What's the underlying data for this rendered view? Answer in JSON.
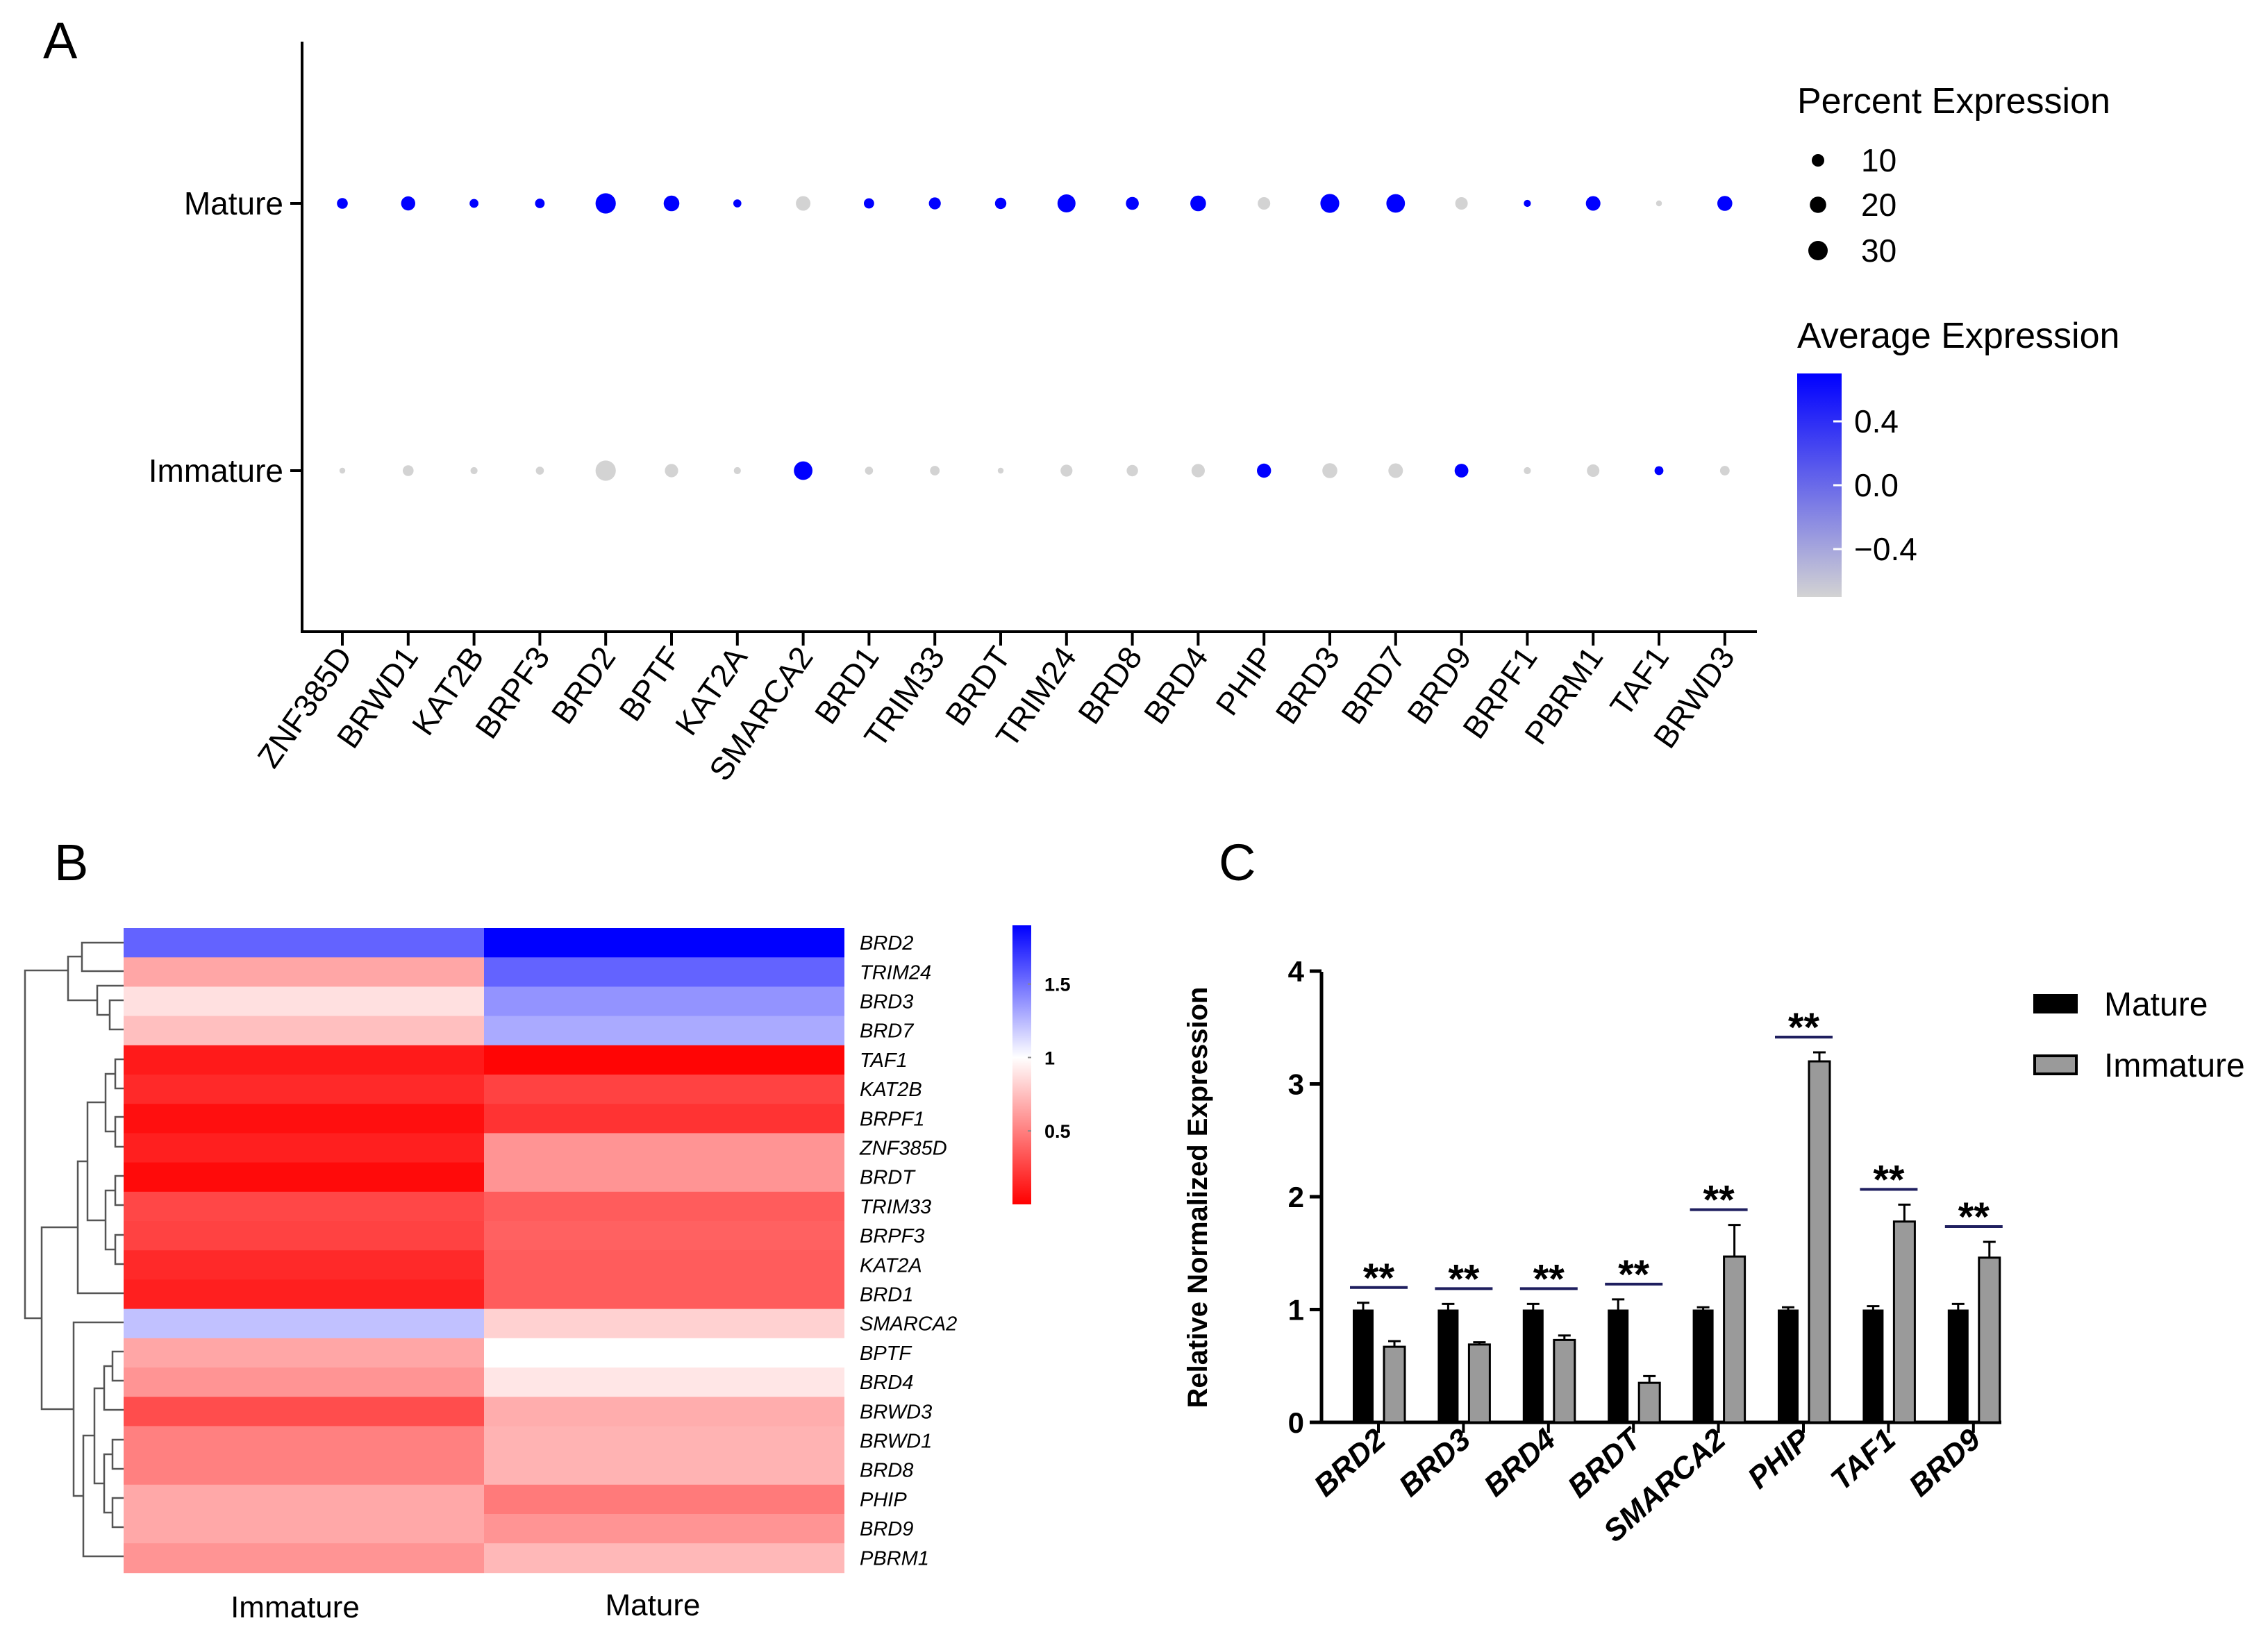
{
  "panels": {
    "a": "A",
    "b": "B",
    "c": "C"
  },
  "colors": {
    "high": "#0000ff",
    "mid": "#ffffff",
    "low": "#ff0000",
    "grey": "#d3d3d3",
    "black": "#000000",
    "bar_immature": "#9a9a9a",
    "sig_line": "#1f1f5f"
  },
  "chart_data": [
    {
      "type": "scatter",
      "subtype": "dotplot",
      "title": "",
      "groups": [
        "Mature",
        "Immature"
      ],
      "genes": [
        "ZNF385D",
        "BRWD1",
        "KAT2B",
        "BRPF3",
        "BRD2",
        "BPTF",
        "KAT2A",
        "SMARCA2",
        "BRD1",
        "TRIM33",
        "BRDT",
        "TRIM24",
        "BRD8",
        "BRD4",
        "PHIP",
        "BRD3",
        "BRD7",
        "BRD9",
        "BRPF1",
        "PBRM1",
        "TAF1",
        "BRWD3"
      ],
      "percent_expression": {
        "Mature": [
          7,
          14,
          4,
          5,
          33,
          18,
          3,
          15,
          6,
          9,
          8,
          25,
          11,
          18,
          10,
          28,
          27,
          10,
          2,
          15,
          1,
          16
        ],
        "Immature": [
          1,
          7,
          2,
          3,
          33,
          12,
          2,
          27,
          3,
          5,
          1,
          9,
          8,
          12,
          14,
          16,
          15,
          13,
          2,
          10,
          4,
          5
        ]
      },
      "average_expression": {
        "Mature": [
          0.7,
          0.7,
          0.7,
          0.7,
          0.7,
          0.7,
          0.7,
          -0.7,
          0.7,
          0.7,
          0.7,
          0.7,
          0.7,
          0.7,
          -0.7,
          0.7,
          0.7,
          -0.7,
          0.7,
          0.7,
          -0.7,
          0.7
        ],
        "Immature": [
          -0.7,
          -0.7,
          -0.7,
          -0.7,
          -0.7,
          -0.7,
          -0.7,
          0.7,
          -0.7,
          -0.7,
          -0.7,
          -0.7,
          -0.7,
          -0.7,
          0.7,
          -0.7,
          -0.7,
          0.7,
          -0.7,
          -0.7,
          0.7,
          -0.7
        ]
      },
      "size_legend": {
        "title": "Percent Expression",
        "values": [
          10,
          20,
          30
        ],
        "labels": [
          "10",
          "20",
          "30"
        ]
      },
      "color_legend": {
        "title": "Average Expression",
        "range": [
          -0.7,
          0.7
        ],
        "ticks": [
          0.4,
          0.0,
          -0.4
        ],
        "labels": [
          "0.4",
          "0.0",
          "−0.4"
        ]
      }
    },
    {
      "type": "heatmap",
      "columns": [
        "Immature",
        "Mature"
      ],
      "rows": [
        "BRD2",
        "TRIM24",
        "BRD3",
        "BRD7",
        "TAF1",
        "KAT2B",
        "BRPF1",
        "ZNF385D",
        "BRDT",
        "TRIM33",
        "BRPF3",
        "KAT2A",
        "BRD1",
        "SMARCA2",
        "BPTF",
        "BRD4",
        "BRWD3",
        "BRWD1",
        "BRD8",
        "PHIP",
        "BRD9",
        "PBRM1"
      ],
      "values": [
        [
          1.55,
          1.9
        ],
        [
          0.65,
          1.55
        ],
        [
          0.88,
          1.38
        ],
        [
          0.75,
          1.3
        ],
        [
          0.1,
          0.02
        ],
        [
          0.16,
          0.26
        ],
        [
          0.06,
          0.2
        ],
        [
          0.12,
          0.58
        ],
        [
          0.04,
          0.58
        ],
        [
          0.28,
          0.36
        ],
        [
          0.26,
          0.38
        ],
        [
          0.16,
          0.36
        ],
        [
          0.12,
          0.36
        ],
        [
          1.22,
          0.82
        ],
        [
          0.65,
          1.0
        ],
        [
          0.58,
          0.9
        ],
        [
          0.3,
          0.68
        ],
        [
          0.5,
          0.7
        ],
        [
          0.5,
          0.7
        ],
        [
          0.66,
          0.48
        ],
        [
          0.66,
          0.58
        ],
        [
          0.58,
          0.72
        ]
      ],
      "colorbar": {
        "range": [
          0.0,
          1.9
        ],
        "ticks": [
          1.5,
          1,
          0.5
        ],
        "labels": [
          "1.5",
          "1",
          "0.5"
        ]
      }
    },
    {
      "type": "bar",
      "categories": [
        "BRD2",
        "BRD3",
        "BRD4",
        "BRDT",
        "SMARCA2",
        "PHIP",
        "TAF1",
        "BRD9"
      ],
      "series": [
        {
          "name": "Mature",
          "values": [
            1.0,
            1.0,
            1.0,
            1.0,
            1.0,
            1.0,
            1.0,
            1.0
          ],
          "errors": [
            0.06,
            0.05,
            0.05,
            0.09,
            0.02,
            0.02,
            0.03,
            0.05
          ]
        },
        {
          "name": "Immature",
          "values": [
            0.67,
            0.69,
            0.73,
            0.35,
            1.47,
            3.2,
            1.78,
            1.46
          ],
          "errors": [
            0.05,
            0.02,
            0.04,
            0.06,
            0.28,
            0.08,
            0.15,
            0.14
          ]
        }
      ],
      "significance": [
        "**",
        "**",
        "**",
        "**",
        "**",
        "**",
        "**",
        "**"
      ],
      "ylabel": "Relative Normalized Expression",
      "ylim": [
        0,
        4
      ],
      "yticks": [
        0,
        1,
        2,
        3,
        4
      ],
      "ytick_labels": [
        "0",
        "1",
        "2",
        "3",
        "4"
      ]
    }
  ]
}
